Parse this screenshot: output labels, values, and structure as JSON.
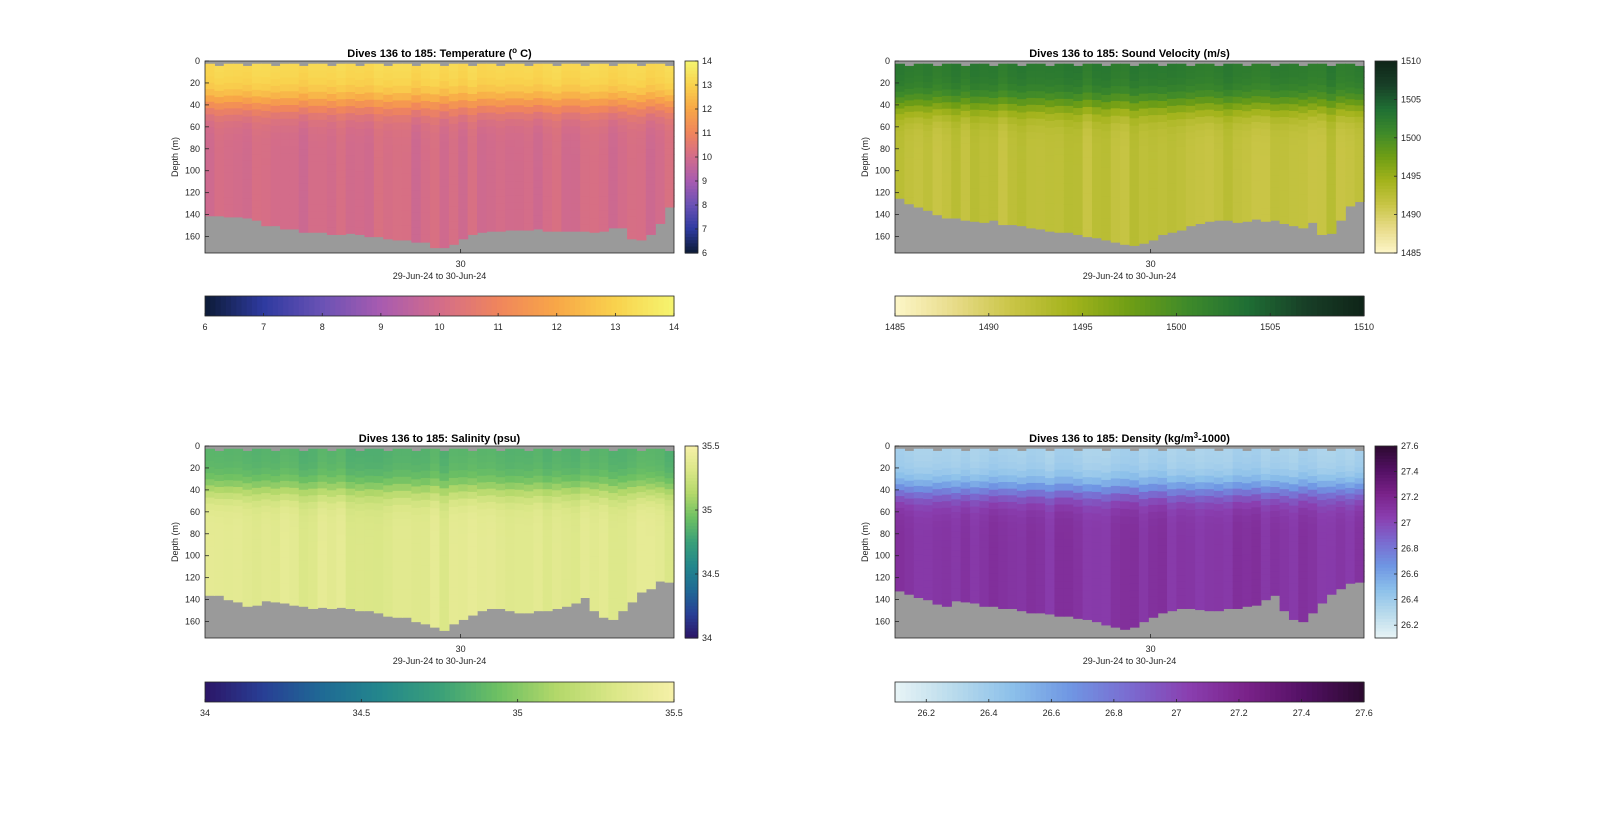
{
  "figure": {
    "background": "#ffffff",
    "nodata_color": "#9a9a9a"
  },
  "chart_data": [
    {
      "type": "heatmap",
      "title": "Dives 136 to 185: Temperature (",
      "title_super": "o",
      "title_tail": " C)",
      "xlabel": "29-Jun-24 to 30-Jun-24",
      "ylabel": "Depth (m)",
      "x_tick_labels": [
        "30"
      ],
      "x_tick_fraction": [
        0.545
      ],
      "ylim": [
        0,
        175
      ],
      "y_ticks": [
        0,
        20,
        40,
        60,
        80,
        100,
        120,
        140,
        160
      ],
      "y_tick_labels": [
        "0",
        "20",
        "40",
        "60",
        "80",
        "100",
        "120",
        "140",
        "160"
      ],
      "dives": 50,
      "surface_mixed_layer_depth_m": 38,
      "profile_max_depth_m": [
        141,
        141,
        142,
        142,
        143,
        145,
        150,
        150,
        153,
        153,
        156,
        156,
        156,
        158,
        158,
        157,
        158,
        160,
        160,
        162,
        163,
        163,
        165,
        165,
        170,
        170,
        167,
        162,
        158,
        156,
        155,
        155,
        154,
        154,
        154,
        153,
        155,
        155,
        155,
        155,
        155,
        156,
        155,
        152,
        152,
        162,
        163,
        158,
        148,
        133
      ],
      "surface_value": 13.2,
      "deep_value": 10.0,
      "colormap": [
        "#0c1b36",
        "#2e3aa0",
        "#6a52b5",
        "#a85bb0",
        "#d36c8a",
        "#f0855c",
        "#f8a747",
        "#f9d24d",
        "#f5f570"
      ],
      "colorbar_range": [
        6,
        14
      ],
      "colorbar_ticks": [
        6,
        7,
        8,
        9,
        10,
        11,
        12,
        13,
        14
      ],
      "colorbar_tick_labels": [
        "6",
        "7",
        "8",
        "9",
        "10",
        "11",
        "12",
        "13",
        "14"
      ],
      "h_colorbar_ticks": [
        6,
        7,
        8,
        9,
        10,
        11,
        12,
        13,
        14
      ],
      "h_colorbar_tick_labels": [
        "6",
        "7",
        "8",
        "9",
        "10",
        "11",
        "12",
        "13",
        "14"
      ]
    },
    {
      "type": "heatmap",
      "title": "Dives 136 to 185: Sound Velocity (m/s)",
      "title_super": "",
      "title_tail": "",
      "xlabel": "29-Jun-24 to 30-Jun-24",
      "ylabel": "Depth (m)",
      "x_tick_labels": [
        "30"
      ],
      "x_tick_fraction": [
        0.545
      ],
      "ylim": [
        0,
        175
      ],
      "y_ticks": [
        0,
        20,
        40,
        60,
        80,
        100,
        120,
        140,
        160
      ],
      "y_tick_labels": [
        "0",
        "20",
        "40",
        "60",
        "80",
        "100",
        "120",
        "140",
        "160"
      ],
      "dives": 50,
      "surface_mixed_layer_depth_m": 40,
      "profile_max_depth_m": [
        125,
        130,
        133,
        136,
        140,
        143,
        143,
        145,
        146,
        147,
        145,
        149,
        149,
        150,
        152,
        153,
        155,
        156,
        156,
        158,
        160,
        161,
        163,
        165,
        167,
        168,
        166,
        163,
        158,
        156,
        154,
        150,
        148,
        146,
        145,
        145,
        147,
        146,
        144,
        146,
        145,
        148,
        150,
        152,
        147,
        158,
        157,
        145,
        132,
        128
      ],
      "surface_value": 1502.5,
      "deep_value": 1492.0,
      "colormap": [
        "#fdf6c8",
        "#e8dc8a",
        "#c9c546",
        "#a3b31c",
        "#6f9e15",
        "#3e8a2a",
        "#1f6f34",
        "#183f27",
        "#0f2418"
      ],
      "colorbar_range": [
        1485,
        1510
      ],
      "colorbar_ticks": [
        1485,
        1490,
        1495,
        1500,
        1505,
        1510
      ],
      "colorbar_tick_labels": [
        "1485",
        "1490",
        "1495",
        "1500",
        "1505",
        "1510"
      ],
      "h_colorbar_ticks": [
        1485,
        1490,
        1495,
        1500,
        1505,
        1510
      ],
      "h_colorbar_tick_labels": [
        "1485",
        "1490",
        "1495",
        "1500",
        "1505",
        "1510"
      ]
    },
    {
      "type": "heatmap",
      "title": "Dives 136 to 185: Salinity (psu)",
      "title_super": "",
      "title_tail": "",
      "xlabel": "29-Jun-24 to 30-Jun-24",
      "ylabel": "Depth (m)",
      "x_tick_labels": [
        "30"
      ],
      "x_tick_fraction": [
        0.545
      ],
      "ylim": [
        0,
        175
      ],
      "y_ticks": [
        0,
        20,
        40,
        60,
        80,
        100,
        120,
        140,
        160
      ],
      "y_tick_labels": [
        "0",
        "20",
        "40",
        "60",
        "80",
        "100",
        "120",
        "140",
        "160"
      ],
      "dives": 50,
      "surface_mixed_layer_depth_m": 40,
      "profile_max_depth_m": [
        136,
        136,
        140,
        142,
        146,
        145,
        141,
        142,
        143,
        145,
        146,
        148,
        147,
        148,
        147,
        148,
        150,
        150,
        152,
        155,
        156,
        156,
        160,
        162,
        165,
        168,
        162,
        158,
        154,
        150,
        148,
        148,
        150,
        152,
        152,
        150,
        150,
        148,
        146,
        143,
        138,
        150,
        156,
        158,
        150,
        142,
        133,
        130,
        123,
        124
      ],
      "surface_value": 34.85,
      "deep_value": 35.35,
      "colormap": [
        "#2c1567",
        "#283f95",
        "#1f6a95",
        "#23878c",
        "#3aa079",
        "#6dc063",
        "#b3d86a",
        "#dbe788",
        "#f6f0a8"
      ],
      "colorbar_range": [
        34,
        35.5
      ],
      "colorbar_ticks": [
        34,
        34.5,
        35,
        35.5
      ],
      "colorbar_tick_labels": [
        "34",
        "34.5",
        "35",
        "35.5"
      ],
      "h_colorbar_ticks": [
        34,
        34.5,
        35,
        35.5
      ],
      "h_colorbar_tick_labels": [
        "34",
        "34.5",
        "35",
        "35.5"
      ]
    },
    {
      "type": "heatmap",
      "title": "Dives 136 to 185: Density (kg/m",
      "title_super": "3",
      "title_tail": "-1000)",
      "xlabel": "29-Jun-24 to 30-Jun-24",
      "ylabel": "Depth (m)",
      "x_tick_labels": [
        "30"
      ],
      "x_tick_fraction": [
        0.545
      ],
      "ylim": [
        0,
        175
      ],
      "y_ticks": [
        0,
        20,
        40,
        60,
        80,
        100,
        120,
        140,
        160
      ],
      "y_tick_labels": [
        "0",
        "20",
        "40",
        "60",
        "80",
        "100",
        "120",
        "140",
        "160"
      ],
      "dives": 50,
      "surface_mixed_layer_depth_m": 40,
      "profile_max_depth_m": [
        132,
        135,
        138,
        140,
        144,
        146,
        141,
        142,
        143,
        146,
        146,
        148,
        148,
        150,
        152,
        152,
        153,
        155,
        155,
        157,
        158,
        160,
        163,
        165,
        167,
        165,
        160,
        156,
        152,
        150,
        148,
        148,
        149,
        150,
        150,
        148,
        148,
        146,
        145,
        140,
        136,
        150,
        158,
        160,
        152,
        143,
        135,
        130,
        125,
        124
      ],
      "surface_value": 26.35,
      "deep_value": 27.1,
      "colormap": [
        "#e8f4f6",
        "#b9dbec",
        "#8cc0ea",
        "#6f96e3",
        "#7a6bd0",
        "#8a3fb0",
        "#7a2289",
        "#521063",
        "#2c0a30"
      ],
      "colorbar_range": [
        26.1,
        27.6
      ],
      "colorbar_ticks": [
        26.2,
        26.4,
        26.6,
        26.8,
        27,
        27.2,
        27.4,
        27.6
      ],
      "colorbar_tick_labels": [
        "26.2",
        "26.4",
        "26.6",
        "26.8",
        "27",
        "27.2",
        "27.4",
        "27.6"
      ],
      "h_colorbar_ticks": [
        26.2,
        26.4,
        26.6,
        26.8,
        27,
        27.2,
        27.4,
        27.6
      ],
      "h_colorbar_tick_labels": [
        "26.2",
        "26.4",
        "26.6",
        "26.8",
        "27",
        "27.2",
        "27.4",
        "27.6"
      ]
    }
  ]
}
